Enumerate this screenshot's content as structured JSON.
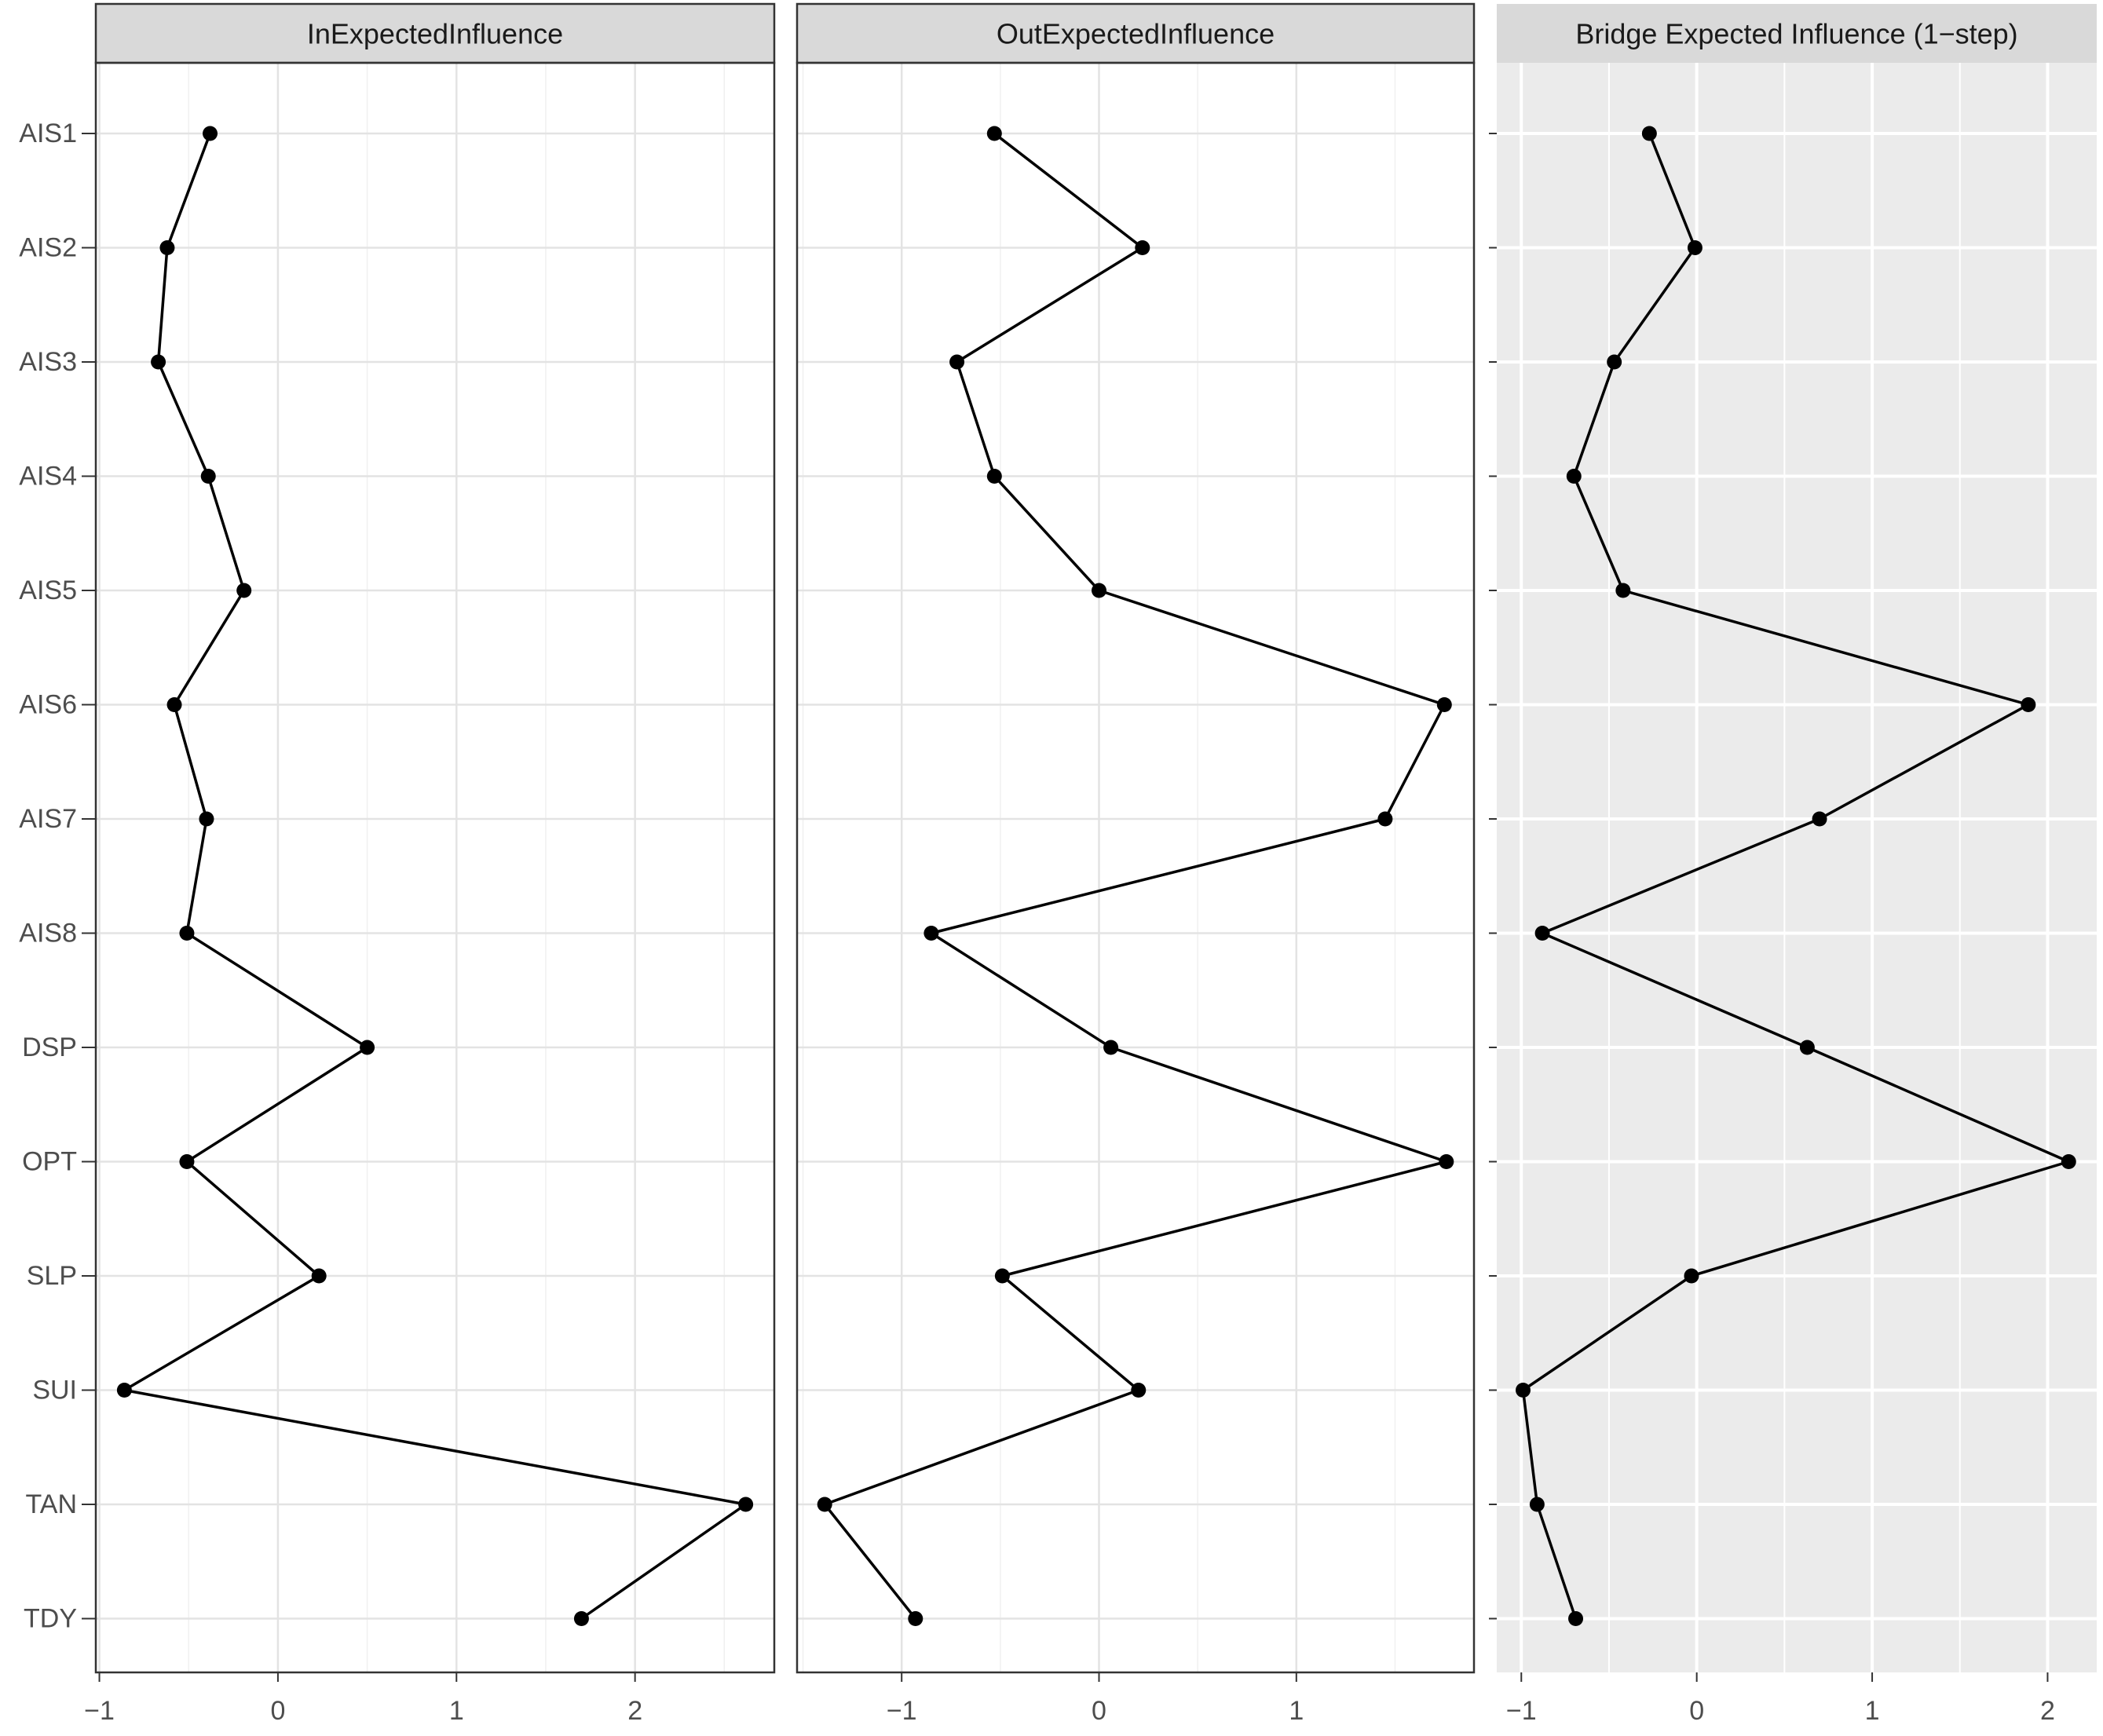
{
  "chart_data": [
    {
      "type": "line",
      "title": "InExpectedInfluence",
      "categories": [
        "AIS1",
        "AIS2",
        "AIS3",
        "AIS4",
        "AIS5",
        "AIS6",
        "AIS7",
        "AIS8",
        "DSP",
        "OPT",
        "SLP",
        "SUI",
        "TAN",
        "TDY"
      ],
      "values": [
        -0.38,
        -0.62,
        -0.67,
        -0.39,
        -0.19,
        -0.58,
        -0.4,
        -0.51,
        0.5,
        -0.51,
        0.23,
        -0.86,
        2.62,
        1.7
      ],
      "xlim": [
        -1.02,
        2.78
      ],
      "xticks": [
        -1,
        0,
        1,
        2
      ],
      "xtick_labels": [
        "−1",
        "0",
        "1",
        "2"
      ],
      "panel_background": "#ffffff",
      "grid": true
    },
    {
      "type": "line",
      "title": "OutExpectedInfluence",
      "categories": [
        "AIS1",
        "AIS2",
        "AIS3",
        "AIS4",
        "AIS5",
        "AIS6",
        "AIS7",
        "AIS8",
        "DSP",
        "OPT",
        "SLP",
        "SUI",
        "TAN",
        "TDY"
      ],
      "values": [
        -0.53,
        0.22,
        -0.72,
        -0.53,
        0.0,
        1.75,
        1.45,
        -0.85,
        0.06,
        1.76,
        -0.49,
        0.2,
        -1.39,
        -0.93
      ],
      "xlim": [
        -1.53,
        1.9
      ],
      "xticks": [
        -1,
        0,
        1
      ],
      "xtick_labels": [
        "−1",
        "0",
        "1"
      ],
      "panel_background": "#ffffff",
      "grid": true
    },
    {
      "type": "line",
      "title": "Bridge Expected Influence (1−step)",
      "categories": [
        "AIS1",
        "AIS2",
        "AIS3",
        "AIS4",
        "AIS5",
        "AIS6",
        "AIS7",
        "AIS8",
        "DSP",
        "OPT",
        "SLP",
        "SUI",
        "TAN",
        "TDY"
      ],
      "values": [
        -0.27,
        -0.01,
        -0.47,
        -0.7,
        -0.42,
        1.89,
        0.7,
        -0.88,
        0.63,
        2.12,
        -0.03,
        -0.99,
        -0.91,
        -0.69
      ],
      "xlim": [
        -1.14,
        2.28
      ],
      "xticks": [
        -1,
        0,
        1,
        2
      ],
      "xtick_labels": [
        "−1",
        "0",
        "1",
        "2"
      ],
      "panel_background": "#ebebeb",
      "grid": true
    }
  ]
}
